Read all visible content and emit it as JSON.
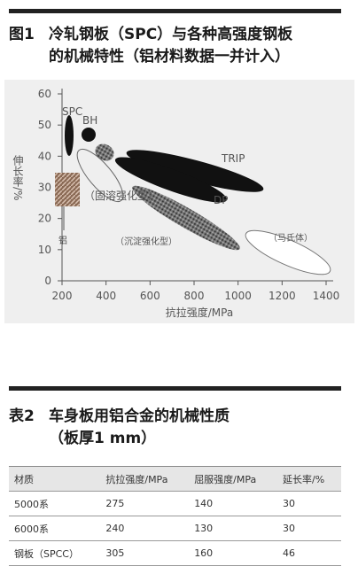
{
  "figure": {
    "title": {
      "number": "图1",
      "lines": [
        "冷轧钢板（SPC）与各种高强度钢板",
        "的机械特性（铝材料数据一并计入）"
      ]
    },
    "y_axis_label": "伸长率/%",
    "x_axis_label": "抗拉强度/MPa",
    "xlim": [
      200,
      1400
    ],
    "ylim": [
      0,
      60
    ],
    "xticks": [
      200,
      400,
      600,
      800,
      1000,
      1200,
      1400
    ],
    "yticks": [
      0,
      10,
      20,
      30,
      40,
      50,
      60
    ],
    "region_labels": {
      "spc": "SPC",
      "bh": "BH",
      "trip": "TRIP",
      "dp": "DP",
      "solid": "（固溶强化型）",
      "precip": "（沉淀强化型）",
      "martensite": "（马氏体）",
      "aluminum": "铝"
    }
  },
  "table": {
    "title": {
      "number": "表2",
      "lines": [
        "车身板用铝合金的机械性质",
        "（板厚1 mm）"
      ]
    },
    "header": [
      "材质",
      "抗拉强度/MPa",
      "屈服强度/MPa",
      "延长率/%"
    ],
    "rows": [
      [
        "5000系",
        275,
        140,
        30
      ],
      [
        "6000系",
        240,
        130,
        30
      ],
      [
        "钢板（SPCC）",
        305,
        160,
        46
      ]
    ]
  }
}
